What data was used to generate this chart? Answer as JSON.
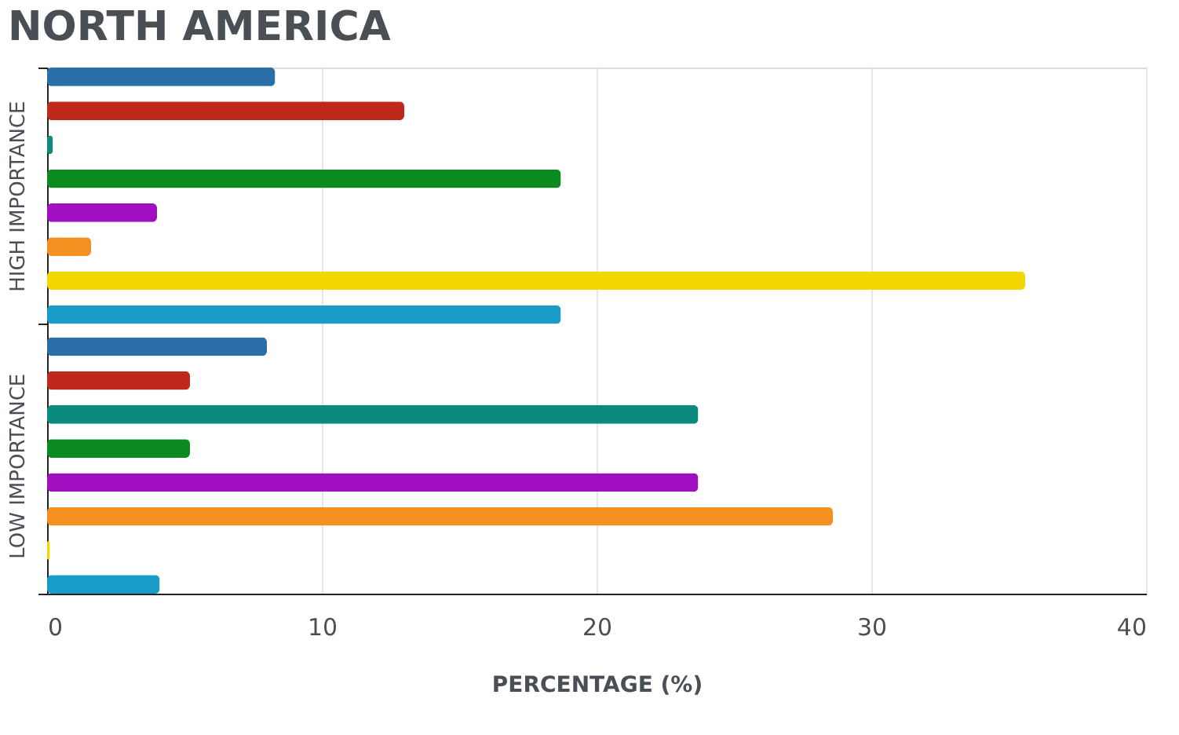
{
  "chart_data": {
    "type": "bar",
    "orientation": "horizontal",
    "title": "NORTH AMERICA",
    "xlabel": "PERCENTAGE (%)",
    "categories": [
      "HIGH IMPORTANCE",
      "LOW IMPORTANCE"
    ],
    "series": [
      {
        "color": "#2a6fa8",
        "values": [
          8.3,
          8.0
        ]
      },
      {
        "color": "#c0281c",
        "values": [
          13.0,
          5.2
        ]
      },
      {
        "color": "#0b8a80",
        "values": [
          0.2,
          23.7
        ]
      },
      {
        "color": "#0b8a20",
        "values": [
          18.7,
          5.2
        ]
      },
      {
        "color": "#a010c0",
        "values": [
          4.0,
          23.7
        ]
      },
      {
        "color": "#f39020",
        "values": [
          1.6,
          28.6
        ]
      },
      {
        "color": "#f2d600",
        "values": [
          35.6,
          0.1
        ]
      },
      {
        "color": "#1a9cc8",
        "values": [
          18.7,
          4.1
        ]
      }
    ],
    "xlim": [
      0,
      40
    ],
    "xticks": [
      0,
      10,
      20,
      30,
      40
    ],
    "grid": "x",
    "legend": false
  }
}
